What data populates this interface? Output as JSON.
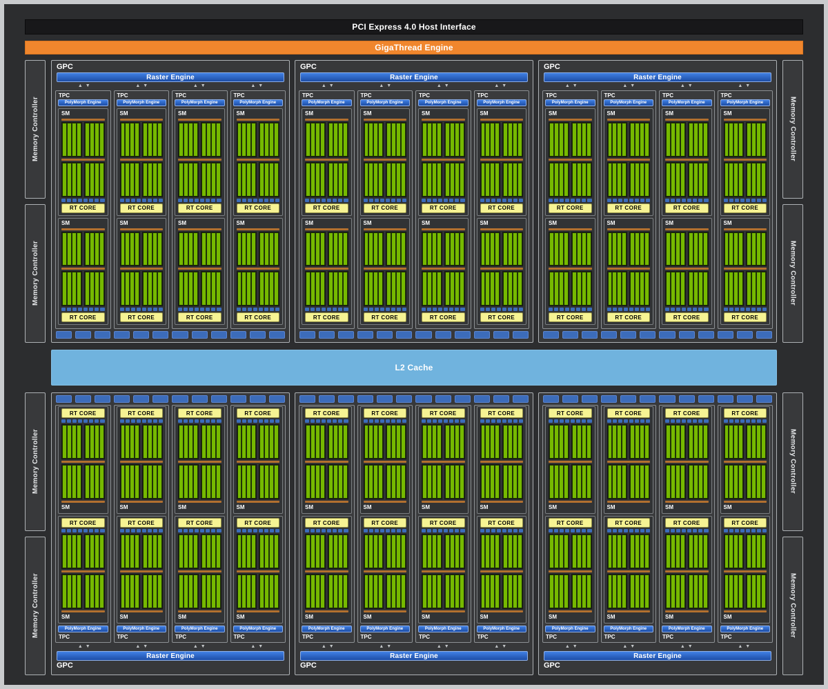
{
  "labels": {
    "pci": "PCI Express 4.0 Host Interface",
    "gigathread": "GigaThread Engine",
    "l2": "L2 Cache",
    "memory_controller": "Memory Controller",
    "gpc": "GPC",
    "raster": "Raster Engine",
    "tpc": "TPC",
    "polymorph": "PolyMorph Engine",
    "sm": "SM",
    "rt_core": "RT CORE"
  },
  "icons": {
    "up_arrow": "▲",
    "down_arrow": "▼"
  },
  "structure": {
    "gpc_rows": 2,
    "gpcs_per_row": 3,
    "tpcs_per_gpc": 4,
    "sms_per_tpc": 2,
    "core_rows_per_sm": 2,
    "core_groups_per_row": 2,
    "cores_per_group": 4,
    "ldst_segments_per_sm": 8,
    "texture_segments_per_gpc": 12,
    "memory_controllers_per_side": 4
  },
  "colors": {
    "frame_border": "#c9cbcd",
    "background": "#2c2d2f",
    "pci_bar": "#18181a",
    "gigathread_orange": "#f0862d",
    "engine_blue": "#2e63c4",
    "l2_blue": "#70b3de",
    "cuda_green": "#76b900",
    "rt_core_yellow": "#f6f393",
    "scheduler_orange": "#b2702f",
    "segment_blue": "#3c6cba"
  }
}
